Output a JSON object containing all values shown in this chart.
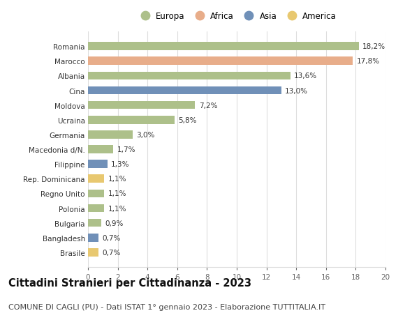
{
  "categories": [
    "Romania",
    "Marocco",
    "Albania",
    "Cina",
    "Moldova",
    "Ucraina",
    "Germania",
    "Macedonia d/N.",
    "Filippine",
    "Rep. Dominicana",
    "Regno Unito",
    "Polonia",
    "Bulgaria",
    "Bangladesh",
    "Brasile"
  ],
  "values": [
    18.2,
    17.8,
    13.6,
    13.0,
    7.2,
    5.8,
    3.0,
    1.7,
    1.3,
    1.1,
    1.1,
    1.1,
    0.9,
    0.7,
    0.7
  ],
  "labels": [
    "18,2%",
    "17,8%",
    "13,6%",
    "13,0%",
    "7,2%",
    "5,8%",
    "3,0%",
    "1,7%",
    "1,3%",
    "1,1%",
    "1,1%",
    "1,1%",
    "0,9%",
    "0,7%",
    "0,7%"
  ],
  "continents": [
    "Europa",
    "Africa",
    "Europa",
    "Asia",
    "Europa",
    "Europa",
    "Europa",
    "Europa",
    "Asia",
    "America",
    "Europa",
    "Europa",
    "Europa",
    "Asia",
    "America"
  ],
  "colors": {
    "Europa": "#adc08a",
    "Africa": "#e8ad8a",
    "Asia": "#7090b8",
    "America": "#e8c870"
  },
  "legend_order": [
    "Europa",
    "Africa",
    "Asia",
    "America"
  ],
  "title": "Cittadini Stranieri per Cittadinanza - 2023",
  "subtitle": "COMUNE DI CAGLI (PU) - Dati ISTAT 1° gennaio 2023 - Elaborazione TUTTITALIA.IT",
  "xlim": [
    0,
    20
  ],
  "xticks": [
    0,
    2,
    4,
    6,
    8,
    10,
    12,
    14,
    16,
    18,
    20
  ],
  "background_color": "#ffffff",
  "grid_color": "#dddddd",
  "bar_height": 0.55,
  "title_fontsize": 10.5,
  "subtitle_fontsize": 8,
  "label_fontsize": 7.5,
  "tick_fontsize": 7.5,
  "legend_fontsize": 8.5
}
